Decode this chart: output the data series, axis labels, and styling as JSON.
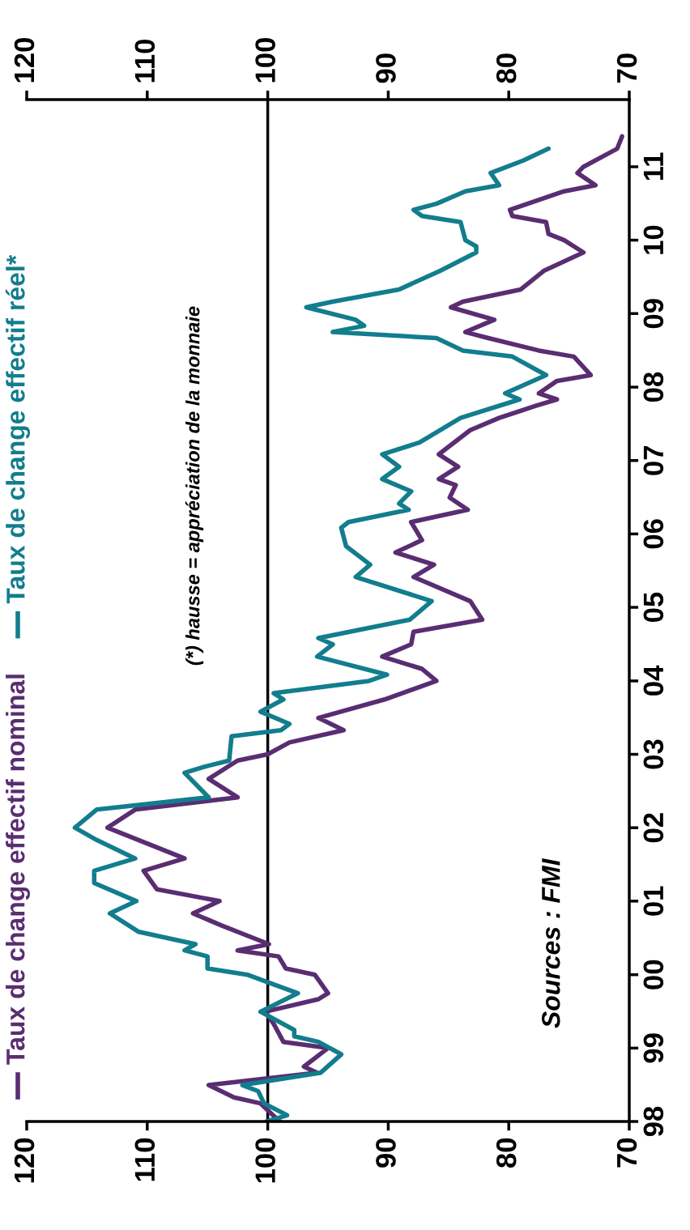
{
  "chart_data": {
    "type": "line",
    "annotations": [
      "(*) hausse = appréciation de la monnaie",
      "Sources : FMI"
    ],
    "orientation": "horizontal",
    "ylim": [
      "1998-01",
      "2011-12"
    ],
    "yticks": [
      {
        "value": "1998-01",
        "label": "98"
      },
      {
        "value": "1999-01",
        "label": "99"
      },
      {
        "value": "2000-01",
        "label": "00"
      },
      {
        "value": "2001-01",
        "label": "01"
      },
      {
        "value": "2002-01",
        "label": "02"
      },
      {
        "value": "2003-01",
        "label": "03"
      },
      {
        "value": "2004-01",
        "label": "04"
      },
      {
        "value": "2005-01",
        "label": "05"
      },
      {
        "value": "2006-01",
        "label": "06"
      },
      {
        "value": "2007-01",
        "label": "07"
      },
      {
        "value": "2008-01",
        "label": "08"
      },
      {
        "value": "2009-01",
        "label": "09"
      },
      {
        "value": "2010-01",
        "label": "10"
      },
      {
        "value": "2011-01",
        "label": "11"
      }
    ],
    "xlim": [
      120,
      70
    ],
    "xticks": [
      120,
      110,
      100,
      90,
      80,
      70
    ],
    "x2lim": [
      120,
      70
    ],
    "x2ticks": [
      120,
      110,
      100,
      90,
      80,
      70
    ],
    "ref_lines": [
      {
        "axis": "x",
        "value": 100,
        "color": "#000000"
      }
    ],
    "legend": "left",
    "grid": false,
    "marker": "none",
    "line_style": "solid",
    "series": [
      {
        "name": "Taux de change effectif nominal",
        "color": "#5a2d72",
        "x": [
          "1998-01",
          "1998-04",
          "1998-05",
          "1998-07",
          "1998-09",
          "1998-10",
          "1999-01",
          "1999-02",
          "1999-05",
          "1999-07",
          "1999-09",
          "1999-10",
          "2000-01",
          "2000-02",
          "2000-04",
          "2000-05",
          "2000-06",
          "2000-09",
          "2000-11",
          "2001-01",
          "2001-03",
          "2001-06",
          "2001-08",
          "2002-01",
          "2002-04",
          "2002-06",
          "2002-09",
          "2002-12",
          "2003-01",
          "2003-03",
          "2003-05",
          "2003-07",
          "2003-10",
          "2004-01",
          "2004-03",
          "2004-05",
          "2004-07",
          "2004-09",
          "2004-11",
          "2005-02",
          "2005-06",
          "2005-08",
          "2005-10",
          "2005-12",
          "2006-03",
          "2006-05",
          "2006-07",
          "2006-09",
          "2006-10",
          "2006-12",
          "2007-02",
          "2007-06",
          "2007-08",
          "2007-10",
          "2007-11",
          "2007-12",
          "2008-02",
          "2008-03",
          "2008-06",
          "2008-07",
          "2008-09",
          "2008-10",
          "2008-12",
          "2009-02",
          "2009-03",
          "2009-05",
          "2009-08",
          "2009-11",
          "2010-01",
          "2010-02",
          "2010-04",
          "2010-05",
          "2010-06",
          "2010-09",
          "2010-10",
          "2010-12",
          "2011-01",
          "2011-04",
          "2011-06"
        ],
        "values": [
          99.0,
          100.6,
          102.8,
          104.9,
          95.9,
          97.0,
          95.0,
          98.7,
          99.5,
          100.2,
          95.8,
          95.0,
          96.1,
          98.5,
          99.1,
          102.5,
          99.9,
          103.8,
          106.2,
          104.0,
          109.2,
          110.3,
          106.9,
          113.3,
          111.0,
          102.5,
          104.9,
          102.5,
          100.0,
          98.2,
          93.7,
          95.8,
          90.3,
          86.0,
          87.2,
          90.5,
          88.1,
          87.9,
          82.2,
          83.2,
          87.9,
          86.2,
          89.4,
          87.2,
          88.1,
          83.4,
          84.9,
          84.4,
          85.8,
          84.2,
          85.8,
          83.2,
          80.8,
          77.7,
          76.0,
          77.5,
          76.0,
          73.2,
          74.6,
          77.5,
          81.7,
          83.6,
          81.2,
          84.8,
          83.8,
          79.0,
          77.1,
          73.8,
          75.4,
          76.7,
          76.9,
          79.7,
          79.9,
          75.4,
          72.8,
          74.3,
          73.8,
          71.0,
          70.6
        ]
      },
      {
        "name": "Taux de change effectif réel*",
        "color": "#127d8d",
        "x": [
          "1998-01",
          "1998-02",
          "1998-04",
          "1998-06",
          "1998-07",
          "1998-09",
          "1998-12",
          "1999-02",
          "1999-03",
          "1999-04",
          "1999-07",
          "1999-10",
          "1999-12",
          "2000-01",
          "2000-02",
          "2000-04",
          "2000-05",
          "2000-06",
          "2000-08",
          "2000-11",
          "2001-01",
          "2001-04",
          "2001-06",
          "2001-08",
          "2001-11",
          "2002-01",
          "2002-04",
          "2002-06",
          "2002-10",
          "2002-11",
          "2002-12",
          "2003-04",
          "2003-05",
          "2003-06",
          "2003-08",
          "2003-10",
          "2003-11",
          "2004-01",
          "2004-02",
          "2004-05",
          "2004-07",
          "2004-08",
          "2004-11",
          "2005-02",
          "2005-06",
          "2005-08",
          "2005-11",
          "2006-02",
          "2006-03",
          "2006-05",
          "2006-06",
          "2006-08",
          "2006-10",
          "2006-12",
          "2007-02",
          "2007-04",
          "2007-08",
          "2007-11",
          "2007-12",
          "2008-03",
          "2008-06",
          "2008-07",
          "2008-09",
          "2008-10",
          "2008-11",
          "2008-12",
          "2009-02",
          "2009-03",
          "2009-05",
          "2009-08",
          "2009-11",
          "2009-12",
          "2010-01",
          "2010-04",
          "2010-05",
          "2010-06",
          "2010-07",
          "2010-09",
          "2010-10",
          "2010-12",
          "2011-02",
          "2011-04"
        ],
        "values": [
          100.1,
          98.4,
          100.3,
          100.8,
          102.1,
          95.6,
          93.9,
          95.8,
          97.8,
          97.8,
          100.6,
          97.5,
          100.3,
          101.7,
          105.0,
          105.0,
          106.9,
          106.0,
          110.7,
          113.1,
          110.9,
          114.4,
          114.4,
          111.0,
          114.2,
          116.0,
          114.2,
          104.9,
          106.9,
          105.2,
          103.2,
          103.0,
          98.9,
          98.2,
          100.6,
          98.7,
          99.5,
          91.6,
          90.1,
          95.9,
          94.6,
          95.8,
          88.2,
          86.4,
          92.7,
          91.5,
          93.5,
          93.9,
          93.3,
          88.3,
          89.1,
          88.1,
          90.5,
          89.1,
          90.5,
          87.4,
          84.0,
          79.1,
          80.3,
          76.9,
          79.7,
          83.8,
          86.0,
          94.6,
          92.0,
          92.7,
          96.8,
          94.6,
          89.1,
          85.7,
          82.7,
          82.7,
          83.6,
          84.0,
          87.2,
          87.9,
          86.0,
          83.6,
          80.8,
          81.5,
          78.8,
          76.7
        ]
      }
    ]
  }
}
